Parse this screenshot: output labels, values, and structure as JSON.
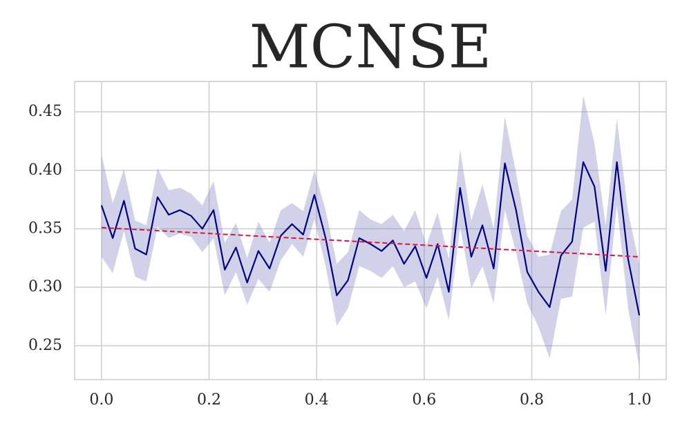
{
  "chart_data": {
    "type": "line",
    "title": "MCNSE",
    "x": [
      0,
      0.0208,
      0.0417,
      0.0625,
      0.0833,
      0.1042,
      0.125,
      0.1458,
      0.1667,
      0.1875,
      0.2083,
      0.2292,
      0.25,
      0.2708,
      0.2917,
      0.3125,
      0.3333,
      0.3542,
      0.375,
      0.3958,
      0.4167,
      0.4375,
      0.4583,
      0.4792,
      0.5,
      0.5208,
      0.5417,
      0.5625,
      0.5833,
      0.6042,
      0.625,
      0.6458,
      0.6667,
      0.6875,
      0.7083,
      0.7292,
      0.75,
      0.7708,
      0.7917,
      0.8125,
      0.8333,
      0.8542,
      0.875,
      0.8958,
      0.9167,
      0.9375,
      0.9583,
      0.9792,
      1
    ],
    "series": [
      {
        "color": "#000080",
        "band_color": "#7b7fc4",
        "values": [
          0.37,
          0.342,
          0.374,
          0.333,
          0.328,
          0.377,
          0.362,
          0.366,
          0.361,
          0.35,
          0.366,
          0.315,
          0.334,
          0.304,
          0.331,
          0.316,
          0.344,
          0.354,
          0.345,
          0.379,
          0.342,
          0.293,
          0.306,
          0.342,
          0.337,
          0.331,
          0.34,
          0.32,
          0.335,
          0.308,
          0.337,
          0.296,
          0.385,
          0.326,
          0.353,
          0.316,
          0.406,
          0.366,
          0.313,
          0.296,
          0.283,
          0.327,
          0.339,
          0.407,
          0.386,
          0.314,
          0.407,
          0.324,
          0.276
        ],
        "upper": [
          0.413,
          0.372,
          0.401,
          0.357,
          0.353,
          0.402,
          0.383,
          0.385,
          0.38,
          0.37,
          0.391,
          0.338,
          0.355,
          0.325,
          0.356,
          0.338,
          0.366,
          0.372,
          0.365,
          0.4,
          0.366,
          0.32,
          0.33,
          0.366,
          0.358,
          0.354,
          0.362,
          0.348,
          0.366,
          0.336,
          0.364,
          0.324,
          0.418,
          0.357,
          0.388,
          0.35,
          0.446,
          0.398,
          0.344,
          0.326,
          0.328,
          0.365,
          0.375,
          0.464,
          0.423,
          0.353,
          0.444,
          0.364,
          0.32
        ],
        "lower": [
          0.326,
          0.312,
          0.348,
          0.309,
          0.305,
          0.352,
          0.342,
          0.346,
          0.343,
          0.33,
          0.342,
          0.293,
          0.313,
          0.285,
          0.307,
          0.296,
          0.323,
          0.337,
          0.326,
          0.358,
          0.318,
          0.267,
          0.282,
          0.318,
          0.314,
          0.308,
          0.318,
          0.3,
          0.305,
          0.282,
          0.309,
          0.272,
          0.352,
          0.299,
          0.318,
          0.286,
          0.366,
          0.33,
          0.286,
          0.266,
          0.239,
          0.29,
          0.292,
          0.351,
          0.356,
          0.276,
          0.37,
          0.282,
          0.232
        ]
      }
    ],
    "trend": {
      "x": [
        0,
        1
      ],
      "values": [
        0.351,
        0.326
      ],
      "color": "#dc143c",
      "dashed": true
    },
    "xlim": [
      -0.05,
      1.05
    ],
    "ylim": [
      0.221,
      0.476
    ],
    "xticks": [
      {
        "value": 0,
        "label": "0.0"
      },
      0.2,
      0.4,
      0.6,
      0.8,
      {
        "value": 1,
        "label": "1.0"
      }
    ],
    "yticks": [
      0.25,
      {
        "value": 0.3,
        "label": "0.30"
      },
      0.35,
      {
        "value": 0.4,
        "label": "0.40"
      },
      0.45
    ],
    "grid": true
  }
}
